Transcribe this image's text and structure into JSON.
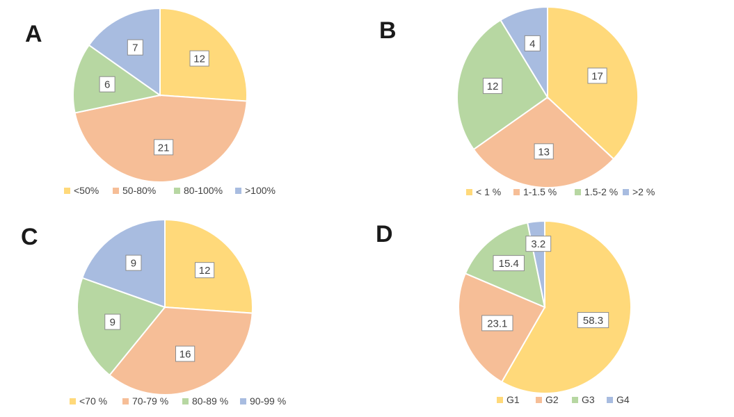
{
  "colors": {
    "yellow": "#FFD97A",
    "orange": "#F6BE97",
    "green": "#B7D7A2",
    "blue": "#A8BCE0"
  },
  "chart_data": [
    {
      "type": "pie",
      "panel": "A",
      "categories": [
        "<50%",
        "50-80%",
        "80-100%",
        ">100%"
      ],
      "values": [
        12,
        21,
        6,
        7
      ],
      "labels": [
        "12",
        "21",
        "6",
        "7"
      ],
      "colors": [
        "#FFD97A",
        "#F6BE97",
        "#B7D7A2",
        "#A8BCE0"
      ],
      "legend": "bottom"
    },
    {
      "type": "pie",
      "panel": "B",
      "categories": [
        "< 1 %",
        "1-1.5 %",
        "1.5-2 %",
        ">2 %"
      ],
      "values": [
        17,
        13,
        12,
        4
      ],
      "labels": [
        "17",
        "13",
        "12",
        "4"
      ],
      "colors": [
        "#FFD97A",
        "#F6BE97",
        "#B7D7A2",
        "#A8BCE0"
      ],
      "legend": "bottom"
    },
    {
      "type": "pie",
      "panel": "C",
      "categories": [
        "<70 %",
        "70-79 %",
        "80-89 %",
        "90-99 %"
      ],
      "values": [
        12,
        16,
        9,
        9
      ],
      "labels": [
        "12",
        "16",
        "9",
        "9"
      ],
      "colors": [
        "#FFD97A",
        "#F6BE97",
        "#B7D7A2",
        "#A8BCE0"
      ],
      "legend": "bottom"
    },
    {
      "type": "pie",
      "panel": "D",
      "categories": [
        "G1",
        "G2",
        "G3",
        "G4"
      ],
      "values": [
        58.3,
        23.1,
        15.4,
        3.2
      ],
      "labels": [
        "58.3",
        "23.1",
        "15.4",
        "3.2"
      ],
      "colors": [
        "#FFD97A",
        "#F6BE97",
        "#B7D7A2",
        "#A8BCE0"
      ],
      "legend": "bottom"
    }
  ]
}
